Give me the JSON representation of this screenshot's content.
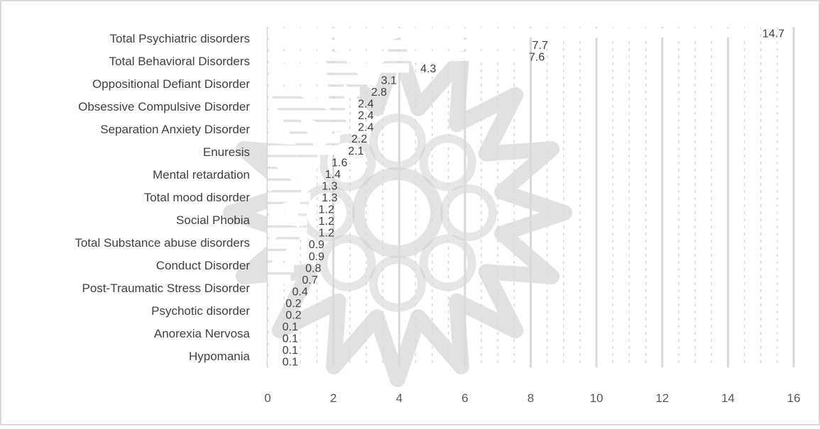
{
  "chart_data": {
    "type": "bar",
    "orientation": "horizontal",
    "title": "",
    "xlabel": "",
    "ylabel": "",
    "xlim": [
      0,
      16
    ],
    "x_ticks": [
      "0",
      "2",
      "4",
      "6",
      "8",
      "10",
      "12",
      "14",
      "16"
    ],
    "grid": true,
    "legend": "none",
    "category_labels": [
      "Total Psychiatric disorders",
      "Total Behavioral Disorders",
      "Oppositional Defiant Disorder",
      "Obsessive Compulsive Disorder",
      "Separation Anxiety Disorder",
      "Enuresis",
      "Mental retardation",
      "Total mood disorder",
      "Social Phobia",
      "Total Substance abuse disorders",
      "Conduct Disorder",
      "Post-Traumatic Stress Disorder",
      "Psychotic disorder",
      "Anorexia Nervosa",
      "Hypomania"
    ],
    "value_labels": [
      "14.7",
      "7.7",
      "7.6",
      "4.3",
      "3.1",
      "2.8",
      "2.4",
      "2.4",
      "2.4",
      "2.2",
      "2.1",
      "1.6",
      "1.4",
      "1.3",
      "1.3",
      "1.2",
      "1.2",
      "1.2",
      "0.9",
      "0.9",
      "0.8",
      "0.7",
      "0.4",
      "0.2",
      "0.2",
      "0.1",
      "0.1",
      "0.1",
      "0.1"
    ],
    "values": [
      14.7,
      7.7,
      7.6,
      4.3,
      3.1,
      2.8,
      2.4,
      2.4,
      2.4,
      2.2,
      2.1,
      1.6,
      1.4,
      1.3,
      1.3,
      1.2,
      1.2,
      1.2,
      0.9,
      0.9,
      0.8,
      0.7,
      0.4,
      0.2,
      0.2,
      0.1,
      0.1,
      0.1,
      0.1
    ],
    "colors": {
      "grid": "#d9d9d9",
      "text": "#404040",
      "tick": "#595959",
      "bar": "#ffffff",
      "watermark": "#c8c8c8"
    }
  }
}
